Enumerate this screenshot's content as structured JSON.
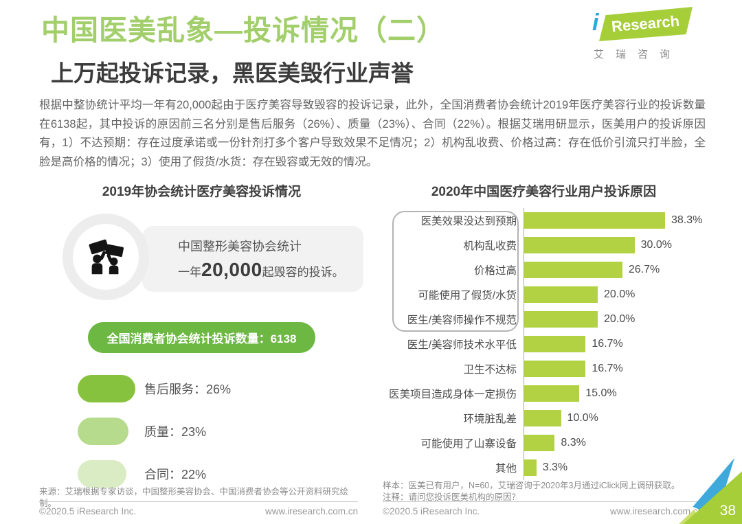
{
  "page": {
    "number": "38"
  },
  "header": {
    "title": "中国医美乱象—投诉情况（二）",
    "title_color": "#a2cf6b",
    "subtitle": "上万起投诉记录，黑医美毁行业声誉",
    "logo": {
      "i": "i",
      "research": "Research",
      "sub": "艾瑞咨询",
      "green": "#a6ce39",
      "teal": "#2aa7dd"
    }
  },
  "intro": {
    "text": "根据中整协统计平均一年有20,000起由于医疗美容导致毁容的投诉记录，此外，全国消费者协会统计2019年医疗美容行业的投诉数量在6138起，其中投诉的原因前三名分别是售后服务（26%）、质量（23%）、合同（22%）。根据艾瑞用研显示，医美用户的投诉原因有，1）不达预期：存在过度承诺或一份针剂打多个客户导致效果不足情况；2）机构乱收费、价格过高：存在低价引流只打半脸，全脸是高价格的情况；3）使用了假货/水货：存在毁容或无效的情况。"
  },
  "left_panel": {
    "title": "2019年协会统计医疗美容投诉情况",
    "icon": "people-holding-signs-icon",
    "info_card": {
      "line1": "中国整形美容协会统计",
      "line2_prefix": "一年",
      "line2_number": "20,000",
      "line2_suffix": "起毁容的投诉。"
    },
    "badge": {
      "label": "全国消费者协会统计投诉数量：6138",
      "color": "#6db843"
    }
  },
  "right_panel": {
    "title": "2020年中国医疗美容行业用户投诉原因"
  },
  "chart_data": [
    {
      "id": "complaint-reasons-2020",
      "type": "bar",
      "orientation": "horizontal",
      "title": "2020年中国医疗美容行业用户投诉原因",
      "categories": [
        "医美效果没达到预期",
        "机构乱收费",
        "价格过高",
        "可能使用了假货/水货",
        "医生/美容师操作不规范",
        "医生/美容师技术水平低",
        "卫生不达标",
        "医美项目造成身体一定损伤",
        "环境脏乱差",
        "可能使用了山寨设备",
        "其他"
      ],
      "values": [
        38.3,
        30.0,
        26.7,
        20.0,
        20.0,
        16.7,
        16.7,
        15.0,
        10.0,
        8.3,
        3.3
      ],
      "value_labels": [
        "38.3%",
        "30.0%",
        "26.7%",
        "20.0%",
        "20.0%",
        "16.7%",
        "16.7%",
        "15.0%",
        "10.0%",
        "8.3%",
        "3.3%"
      ],
      "unit": "%",
      "xlim": [
        0,
        40
      ],
      "bar_color": "#b2d243",
      "grid": false,
      "legend": false,
      "boxed_labels_count": 5
    },
    {
      "id": "complaint-top3-2019",
      "type": "bar",
      "orientation": "horizontal",
      "title": "2019年协会统计医疗美容投诉情况",
      "categories": [
        "售后服务",
        "质量",
        "合同"
      ],
      "values": [
        26,
        23,
        22
      ],
      "labels": [
        "售后服务：26%",
        "质量：23%",
        "合同：22%"
      ],
      "colors": [
        "#86c23e",
        "#b6db8d",
        "#daecc4"
      ],
      "unit": "%"
    }
  ],
  "notes": {
    "left_source": "来源：艾瑞根据专家访谈，中国整形美容协会、中国消费者协会等公开资料研究绘制。",
    "right_sample": "样本：医美已有用户，N=60，艾瑞咨询于2020年3月通过iClick网上调研获取。",
    "right_note": "注释：请问您投诉医美机构的原因？"
  },
  "footer": {
    "copyright": "©2020.5 iResearch Inc.",
    "url": "www.iresearch.com.cn"
  }
}
